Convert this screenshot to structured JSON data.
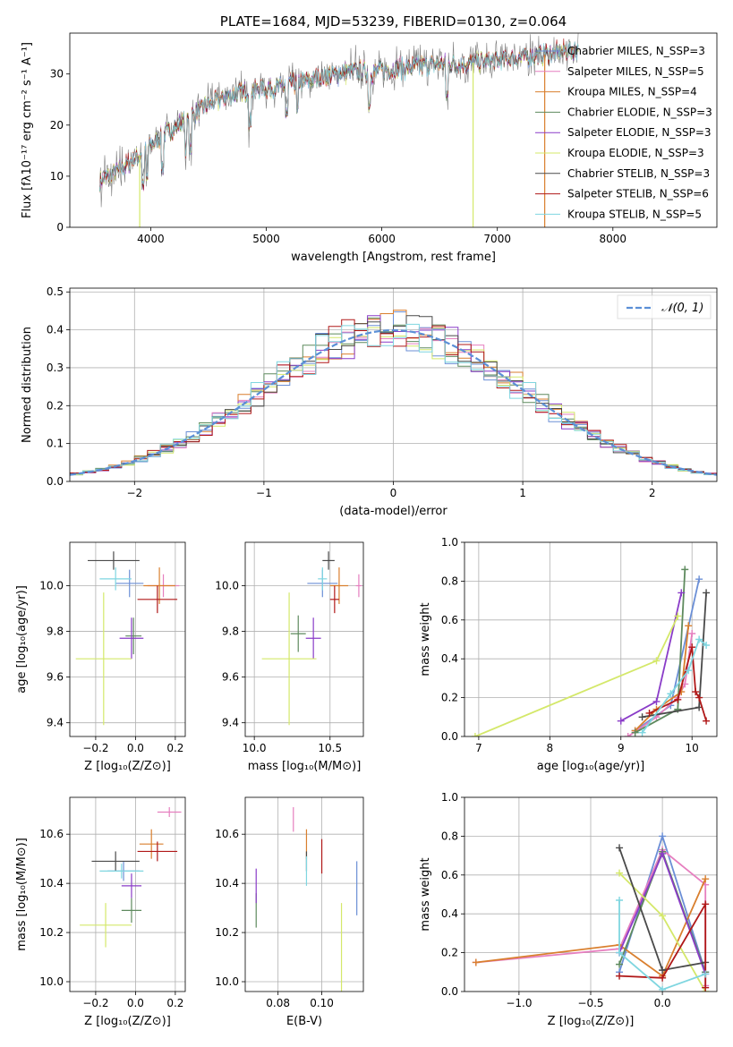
{
  "chart_data": [
    {
      "id": "spectrum",
      "type": "line",
      "title": "PLATE=1684, MJD=53239, FIBERID=0130, z=0.064",
      "xlabel": "wavelength [Angstrom, rest frame]",
      "ylabel": "Flux [fλ10⁻¹⁷ erg cm⁻² s⁻¹ A⁻¹]",
      "xlim": [
        3300,
        8900
      ],
      "ylim": [
        0,
        38
      ],
      "xticks": [
        4000,
        5000,
        6000,
        7000,
        8000
      ],
      "yticks": [
        0,
        10,
        20,
        30
      ],
      "grid": false,
      "legend_position": "right",
      "observed_color": "#808080",
      "continuum": {
        "x": [
          3560,
          3700,
          3900,
          4100,
          4300,
          4500,
          4700,
          4900,
          5100,
          5300,
          5500,
          5700,
          5900,
          6100,
          6300,
          6500,
          6700,
          6900,
          7100,
          7300,
          7500,
          7700
        ],
        "y": [
          9,
          11,
          14,
          18,
          21,
          24,
          26,
          27,
          27.5,
          28.5,
          29.5,
          30.5,
          30.5,
          31,
          31.5,
          32,
          32,
          32.5,
          33,
          33.5,
          34,
          35
        ]
      },
      "series": [
        {
          "name": "Chabrier MILES, N_SSP=3",
          "color": "#6b8fd6"
        },
        {
          "name": "Salpeter MILES, N_SSP=5",
          "color": "#e67fbf"
        },
        {
          "name": "Kroupa MILES, N_SSP=4",
          "color": "#d97f2e"
        },
        {
          "name": "Chabrier ELODIE, N_SSP=3",
          "color": "#5e8a5e"
        },
        {
          "name": "Salpeter ELODIE, N_SSP=3",
          "color": "#8a3cc8"
        },
        {
          "name": "Kroupa ELODIE, N_SSP=3",
          "color": "#d4e86a"
        },
        {
          "name": "Chabrier STELIB, N_SSP=3",
          "color": "#4a4a4a"
        },
        {
          "name": "Salpeter STELIB, N_SSP=6",
          "color": "#b01818"
        },
        {
          "name": "Kroupa STELIB, N_SSP=5",
          "color": "#7fd6e0"
        }
      ]
    },
    {
      "id": "residuals",
      "type": "line",
      "xlabel": "(data-model)/error",
      "ylabel": "Normed distribution",
      "xlim": [
        -2.5,
        2.5
      ],
      "ylim": [
        0,
        0.51
      ],
      "xticks": [
        -2,
        -1,
        0,
        1,
        2
      ],
      "yticks": [
        0.0,
        0.1,
        0.2,
        0.3,
        0.4,
        0.5
      ],
      "grid": true,
      "legend_position": "upper right",
      "legend": "𝒩(0, 1)",
      "normal_curve_color": "#5b8fd6"
    },
    {
      "id": "age_vs_Z",
      "type": "scatter",
      "xlabel": "Z [log₁₀(Z/Z⊙)]",
      "ylabel": "age  [log₁₀(age/yr)]",
      "xlim": [
        -0.33,
        0.25
      ],
      "ylim": [
        9.34,
        10.19
      ],
      "xticks": [
        -0.2,
        0.0,
        0.2
      ],
      "yticks": [
        9.4,
        9.6,
        9.8,
        10.0
      ],
      "grid": true,
      "points": [
        {
          "model": "Chabrier MILES",
          "x": -0.03,
          "y": 10.01,
          "xerr": 0.07,
          "yerr": 0.06
        },
        {
          "model": "Salpeter MILES",
          "x": 0.14,
          "y": 10.0,
          "xerr": 0.08,
          "yerr": 0.05
        },
        {
          "model": "Kroupa MILES",
          "x": 0.12,
          "y": 10.0,
          "xerr": 0.08,
          "yerr": 0.08
        },
        {
          "model": "Chabrier ELODIE",
          "x": -0.01,
          "y": 9.78,
          "xerr": 0.04,
          "yerr": 0.08
        },
        {
          "model": "Salpeter ELODIE",
          "x": -0.02,
          "y": 9.77,
          "xerr": 0.06,
          "yerr": 0.09
        },
        {
          "model": "Kroupa ELODIE",
          "x": -0.16,
          "y": 9.68,
          "xerr": 0.14,
          "yerr": 0.29
        },
        {
          "model": "Chabrier STELIB",
          "x": -0.11,
          "y": 10.11,
          "xerr": 0.13,
          "yerr": 0.04
        },
        {
          "model": "Salpeter STELIB",
          "x": 0.11,
          "y": 9.94,
          "xerr": 0.1,
          "yerr": 0.06
        },
        {
          "model": "Kroupa STELIB",
          "x": -0.1,
          "y": 10.03,
          "xerr": 0.08,
          "yerr": 0.05
        }
      ]
    },
    {
      "id": "age_vs_mass",
      "type": "scatter",
      "xlabel": "mass [log₁₀(M/M⊙)]",
      "xlim": [
        9.94,
        10.72
      ],
      "ylim": [
        9.34,
        10.19
      ],
      "xticks": [
        10.0,
        10.5
      ],
      "yticks": [
        9.4,
        9.6,
        9.8,
        10.0
      ],
      "grid": true,
      "points": [
        {
          "model": "Chabrier MILES",
          "x": 10.45,
          "y": 10.01,
          "xerr": 0.1,
          "yerr": 0.06
        },
        {
          "model": "Salpeter MILES",
          "x": 10.69,
          "y": 10.0,
          "xerr": 0.02,
          "yerr": 0.05
        },
        {
          "model": "Kroupa MILES",
          "x": 10.56,
          "y": 10.0,
          "xerr": 0.06,
          "yerr": 0.08
        },
        {
          "model": "Chabrier ELODIE",
          "x": 10.29,
          "y": 9.79,
          "xerr": 0.05,
          "yerr": 0.08
        },
        {
          "model": "Salpeter ELODIE",
          "x": 10.39,
          "y": 9.77,
          "xerr": 0.05,
          "yerr": 0.09
        },
        {
          "model": "Kroupa ELODIE",
          "x": 10.23,
          "y": 9.68,
          "xerr": 0.18,
          "yerr": 0.29
        },
        {
          "model": "Chabrier STELIB",
          "x": 10.49,
          "y": 10.11,
          "xerr": 0.04,
          "yerr": 0.04
        },
        {
          "model": "Salpeter STELIB",
          "x": 10.53,
          "y": 9.94,
          "xerr": 0.03,
          "yerr": 0.06
        },
        {
          "model": "Kroupa STELIB",
          "x": 10.45,
          "y": 10.03,
          "xerr": 0.03,
          "yerr": 0.05
        }
      ]
    },
    {
      "id": "weight_vs_age",
      "type": "line",
      "xlabel": "age  [log₁₀(age/yr)]",
      "ylabel": "mass weight",
      "xlim": [
        6.8,
        10.35
      ],
      "ylim": [
        0,
        1.0
      ],
      "xticks": [
        7,
        8,
        9,
        10
      ],
      "yticks": [
        0.0,
        0.2,
        0.4,
        0.6,
        0.8,
        1.0
      ],
      "grid": true,
      "series": [
        {
          "model": "Chabrier MILES",
          "x": [
            9.2,
            9.7,
            10.1
          ],
          "y": [
            0.03,
            0.16,
            0.81
          ]
        },
        {
          "model": "Salpeter MILES",
          "x": [
            9.1,
            9.5,
            9.8,
            9.9,
            10.0
          ],
          "y": [
            0.0,
            0.1,
            0.2,
            0.27,
            0.53
          ]
        },
        {
          "model": "Kroupa MILES",
          "x": [
            9.2,
            9.5,
            9.85,
            9.95
          ],
          "y": [
            0.03,
            0.14,
            0.23,
            0.57
          ]
        },
        {
          "model": "Chabrier ELODIE",
          "x": [
            9.2,
            9.8,
            9.9
          ],
          "y": [
            0.02,
            0.14,
            0.86
          ]
        },
        {
          "model": "Salpeter ELODIE",
          "x": [
            9.0,
            9.5,
            9.85
          ],
          "y": [
            0.08,
            0.18,
            0.74
          ]
        },
        {
          "model": "Kroupa ELODIE",
          "x": [
            6.95,
            9.5,
            9.8
          ],
          "y": [
            0.0,
            0.39,
            0.62
          ]
        },
        {
          "model": "Chabrier STELIB",
          "x": [
            9.3,
            10.1,
            10.2
          ],
          "y": [
            0.1,
            0.15,
            0.74
          ]
        },
        {
          "model": "Salpeter STELIB",
          "x": [
            9.4,
            9.8,
            10.0,
            10.05,
            10.1,
            10.2
          ],
          "y": [
            0.12,
            0.19,
            0.46,
            0.23,
            0.2,
            0.08
          ]
        },
        {
          "model": "Kroupa STELIB",
          "x": [
            9.3,
            9.7,
            9.95,
            10.1,
            10.2
          ],
          "y": [
            0.02,
            0.22,
            0.34,
            0.5,
            0.47
          ]
        }
      ]
    },
    {
      "id": "mass_vs_Z",
      "type": "scatter",
      "xlabel": "Z [log₁₀(Z/Z⊙)]",
      "ylabel": "mass [log₁₀(M/M⊙)]",
      "xlim": [
        -0.33,
        0.25
      ],
      "ylim": [
        9.96,
        10.75
      ],
      "xticks": [
        -0.2,
        0.0,
        0.2
      ],
      "yticks": [
        10.0,
        10.2,
        10.4,
        10.6
      ],
      "grid": true,
      "points": [
        {
          "model": "Chabrier MILES",
          "x": -0.06,
          "y": 10.45,
          "xerr": 0.08,
          "yerr": 0.04
        },
        {
          "model": "Salpeter MILES",
          "x": 0.17,
          "y": 10.69,
          "xerr": 0.06,
          "yerr": 0.02
        },
        {
          "model": "Kroupa MILES",
          "x": 0.08,
          "y": 10.56,
          "xerr": 0.06,
          "yerr": 0.06
        },
        {
          "model": "Chabrier ELODIE",
          "x": -0.02,
          "y": 10.29,
          "xerr": 0.05,
          "yerr": 0.05
        },
        {
          "model": "Salpeter ELODIE",
          "x": -0.02,
          "y": 10.39,
          "xerr": 0.05,
          "yerr": 0.05
        },
        {
          "model": "Kroupa ELODIE",
          "x": -0.15,
          "y": 10.23,
          "xerr": 0.13,
          "yerr": 0.09
        },
        {
          "model": "Chabrier STELIB",
          "x": -0.1,
          "y": 10.49,
          "xerr": 0.12,
          "yerr": 0.04
        },
        {
          "model": "Salpeter STELIB",
          "x": 0.11,
          "y": 10.53,
          "xerr": 0.1,
          "yerr": 0.04
        },
        {
          "model": "Kroupa STELIB",
          "x": -0.07,
          "y": 10.45,
          "xerr": 0.11,
          "yerr": 0.03
        }
      ]
    },
    {
      "id": "mass_vs_EBV",
      "type": "scatter",
      "xlabel": "E(B-V)",
      "xlim": [
        0.065,
        0.119
      ],
      "ylim": [
        9.96,
        10.75
      ],
      "xticks": [
        0.08,
        0.1
      ],
      "yticks": [
        10.0,
        10.2,
        10.4,
        10.6
      ],
      "grid": true,
      "points": [
        {
          "model": "Chabrier MILES",
          "x": 0.116,
          "y": 10.38,
          "yerr": 0.11
        },
        {
          "model": "Salpeter MILES",
          "x": 0.087,
          "y": 10.66,
          "yerr": 0.05
        },
        {
          "model": "Kroupa MILES",
          "x": 0.093,
          "y": 10.56,
          "yerr": 0.06
        },
        {
          "model": "Chabrier ELODIE",
          "x": 0.07,
          "y": 10.29,
          "yerr": 0.07
        },
        {
          "model": "Salpeter ELODIE",
          "x": 0.07,
          "y": 10.39,
          "yerr": 0.07
        },
        {
          "model": "Kroupa ELODIE",
          "x": 0.109,
          "y": 10.1,
          "yerr": 0.22
        },
        {
          "model": "Chabrier STELIB",
          "x": 0.093,
          "y": 10.49,
          "yerr": 0.04
        },
        {
          "model": "Salpeter STELIB",
          "x": 0.1,
          "y": 10.51,
          "yerr": 0.07
        },
        {
          "model": "Kroupa STELIB",
          "x": 0.093,
          "y": 10.45,
          "yerr": 0.06
        }
      ]
    },
    {
      "id": "weight_vs_Z",
      "type": "line",
      "xlabel": "Z [log₁₀(Z/Z⊙)]",
      "ylabel": "mass weight",
      "xlim": [
        -1.38,
        0.38
      ],
      "ylim": [
        0,
        1.0
      ],
      "xticks": [
        -1.0,
        -0.5,
        0.0
      ],
      "yticks": [
        0.0,
        0.2,
        0.4,
        0.6,
        0.8,
        1.0
      ],
      "grid": true,
      "series": [
        {
          "model": "Chabrier MILES",
          "x": [
            -0.3,
            0.0,
            0.3
          ],
          "y": [
            0.1,
            0.8,
            0.1
          ]
        },
        {
          "model": "Salpeter MILES",
          "x": [
            -1.3,
            -0.3,
            0.0,
            0.3,
            0.3
          ],
          "y": [
            0.15,
            0.22,
            0.73,
            0.55,
            0.03
          ]
        },
        {
          "model": "Kroupa MILES",
          "x": [
            -1.3,
            -0.3,
            0.0,
            0.3
          ],
          "y": [
            0.15,
            0.24,
            0.08,
            0.58
          ]
        },
        {
          "model": "Chabrier ELODIE",
          "x": [
            -0.3,
            0.0,
            0.3
          ],
          "y": [
            0.14,
            0.72,
            0.1
          ]
        },
        {
          "model": "Salpeter ELODIE",
          "x": [
            -0.3,
            0.0,
            0.3
          ],
          "y": [
            0.2,
            0.71,
            0.09
          ]
        },
        {
          "model": "Kroupa ELODIE",
          "x": [
            -0.3,
            0.0,
            0.3
          ],
          "y": [
            0.61,
            0.39,
            0.0
          ]
        },
        {
          "model": "Chabrier STELIB",
          "x": [
            -0.3,
            0.0,
            0.3
          ],
          "y": [
            0.74,
            0.11,
            0.15
          ]
        },
        {
          "model": "Salpeter STELIB",
          "x": [
            -0.3,
            0.0,
            0.3,
            0.3
          ],
          "y": [
            0.08,
            0.07,
            0.45,
            0.02
          ]
        },
        {
          "model": "Kroupa STELIB",
          "x": [
            -0.3,
            -0.3,
            0.0,
            0.3
          ],
          "y": [
            0.47,
            0.2,
            0.01,
            0.09
          ]
        }
      ]
    }
  ]
}
